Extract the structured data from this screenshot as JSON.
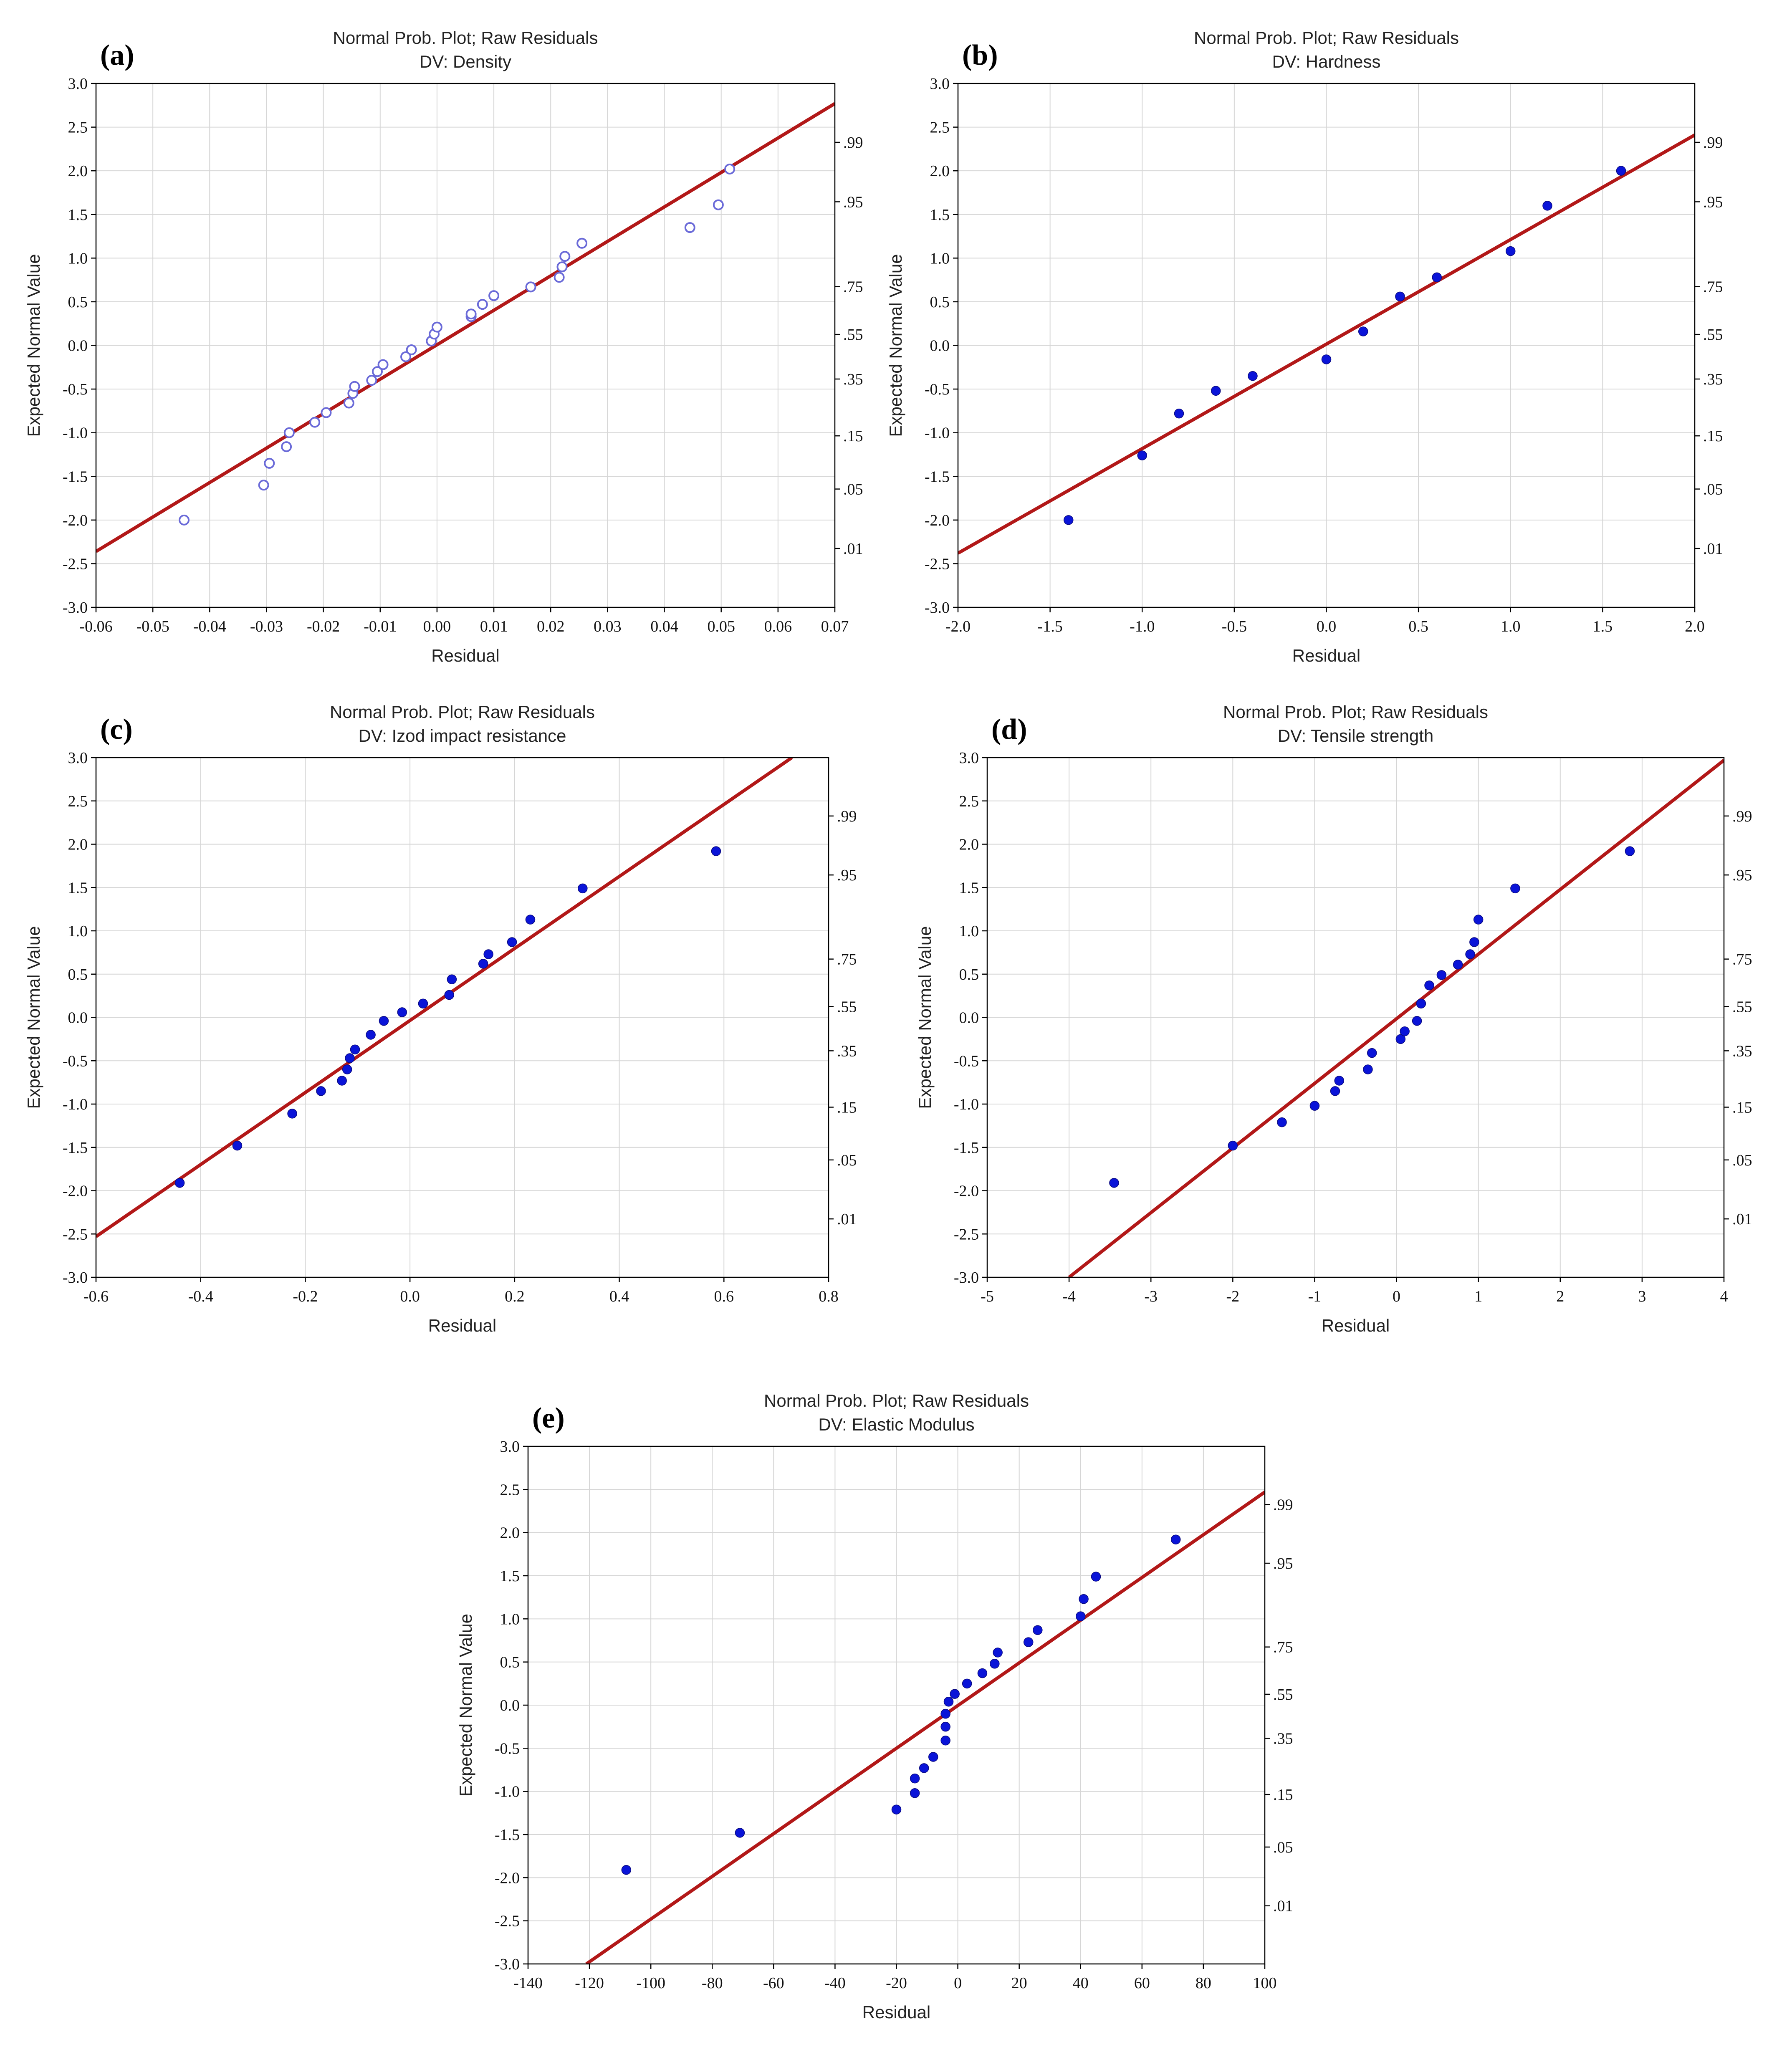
{
  "figure": {
    "title_line1": "Normal Prob. Plot; Raw Residuals"
  },
  "colors": {
    "fit_line": "#b21818",
    "marker": "#0a14d8",
    "marker_open": "#6a6ad8",
    "grid": "#d6d6d6"
  },
  "chart_data": [
    {
      "type": "scatter",
      "panel_label": "(a)",
      "title": "Normal Prob. Plot; Raw Residuals",
      "subtitle": "DV: Density",
      "xlabel": "Residual",
      "ylabel": "Expected Normal Value",
      "xlim": [
        -0.06,
        0.07
      ],
      "ylim": [
        -3.0,
        3.0
      ],
      "xticks": [
        -0.06,
        -0.05,
        -0.04,
        -0.03,
        -0.02,
        -0.01,
        0.0,
        0.01,
        0.02,
        0.03,
        0.04,
        0.05,
        0.06,
        0.07
      ],
      "xtick_labels": [
        "-0.06",
        "-0.05",
        "-0.04",
        "-0.03",
        "-0.02",
        "-0.01",
        "0.00",
        "0.01",
        "0.02",
        "0.03",
        "0.04",
        "0.05",
        "0.06",
        "0.07"
      ],
      "yticks": [
        -3.0,
        -2.5,
        -2.0,
        -1.5,
        -1.0,
        -0.5,
        0.0,
        0.5,
        1.0,
        1.5,
        2.0,
        2.5,
        3.0
      ],
      "ytick_labels": [
        "-3.0",
        "-2.5",
        "-2.0",
        "-1.5",
        "-1.0",
        "-0.5",
        "0.0",
        "0.5",
        "1.0",
        "1.5",
        "2.0",
        "2.5",
        "3.0"
      ],
      "prob_ticks": [
        {
          "y": 2.326,
          "label": ".99"
        },
        {
          "y": 1.645,
          "label": ".95"
        },
        {
          "y": 0.674,
          "label": ".75"
        },
        {
          "y": 0.126,
          "label": ".55"
        },
        {
          "y": -0.385,
          "label": ".35"
        },
        {
          "y": -1.036,
          "label": ".15"
        },
        {
          "y": -1.645,
          "label": ".05"
        },
        {
          "y": -2.326,
          "label": ".01"
        }
      ],
      "marker_style": "open",
      "fit_line": [
        [
          -0.06,
          -2.36
        ],
        [
          0.07,
          2.77
        ]
      ],
      "points": [
        [
          -0.0445,
          -2.0
        ],
        [
          -0.0305,
          -1.6
        ],
        [
          -0.0295,
          -1.35
        ],
        [
          -0.0265,
          -1.16
        ],
        [
          -0.026,
          -1.0
        ],
        [
          -0.0215,
          -0.88
        ],
        [
          -0.0195,
          -0.77
        ],
        [
          -0.0155,
          -0.66
        ],
        [
          -0.0148,
          -0.55
        ],
        [
          -0.0145,
          -0.47
        ],
        [
          -0.0115,
          -0.4
        ],
        [
          -0.0105,
          -0.3
        ],
        [
          -0.0095,
          -0.22
        ],
        [
          -0.0055,
          -0.13
        ],
        [
          -0.0045,
          -0.05
        ],
        [
          -0.001,
          0.05
        ],
        [
          -0.0005,
          0.13
        ],
        [
          0.0,
          0.21
        ],
        [
          0.006,
          0.33
        ],
        [
          0.006,
          0.36
        ],
        [
          0.008,
          0.47
        ],
        [
          0.01,
          0.57
        ],
        [
          0.0165,
          0.67
        ],
        [
          0.0215,
          0.78
        ],
        [
          0.022,
          0.9
        ],
        [
          0.0225,
          1.02
        ],
        [
          0.0255,
          1.17
        ],
        [
          0.0445,
          1.35
        ],
        [
          0.0495,
          1.61
        ],
        [
          0.0515,
          2.02
        ]
      ]
    },
    {
      "type": "scatter",
      "panel_label": "(b)",
      "title": "Normal Prob. Plot; Raw Residuals",
      "subtitle": "DV: Hardness",
      "xlabel": "Residual",
      "ylabel": "Expected Normal Value",
      "xlim": [
        -2.0,
        2.0
      ],
      "ylim": [
        -3.0,
        3.0
      ],
      "xticks": [
        -2.0,
        -1.5,
        -1.0,
        -0.5,
        0.0,
        0.5,
        1.0,
        1.5,
        2.0
      ],
      "xtick_labels": [
        "-2.0",
        "-1.5",
        "-1.0",
        "-0.5",
        "0.0",
        "0.5",
        "1.0",
        "1.5",
        "2.0"
      ],
      "yticks": [
        -3.0,
        -2.5,
        -2.0,
        -1.5,
        -1.0,
        -0.5,
        0.0,
        0.5,
        1.0,
        1.5,
        2.0,
        2.5,
        3.0
      ],
      "ytick_labels": [
        "-3.0",
        "-2.5",
        "-2.0",
        "-1.5",
        "-1.0",
        "-0.5",
        "0.0",
        "0.5",
        "1.0",
        "1.5",
        "2.0",
        "2.5",
        "3.0"
      ],
      "prob_ticks": [
        {
          "y": 2.326,
          "label": ".99"
        },
        {
          "y": 1.645,
          "label": ".95"
        },
        {
          "y": 0.674,
          "label": ".75"
        },
        {
          "y": 0.126,
          "label": ".55"
        },
        {
          "y": -0.385,
          "label": ".35"
        },
        {
          "y": -1.036,
          "label": ".15"
        },
        {
          "y": -1.645,
          "label": ".05"
        },
        {
          "y": -2.326,
          "label": ".01"
        }
      ],
      "marker_style": "filled",
      "fit_line": [
        [
          -2.0,
          -2.38
        ],
        [
          2.0,
          2.41
        ]
      ],
      "points": [
        [
          -1.4,
          -2.0
        ],
        [
          -1.0,
          -1.26
        ],
        [
          -0.8,
          -0.78
        ],
        [
          -0.6,
          -0.52
        ],
        [
          -0.4,
          -0.35
        ],
        [
          0.0,
          -0.16
        ],
        [
          0.2,
          0.16
        ],
        [
          0.4,
          0.56
        ],
        [
          0.6,
          0.78
        ],
        [
          1.0,
          1.08
        ],
        [
          1.2,
          1.6
        ],
        [
          1.6,
          2.0
        ]
      ]
    },
    {
      "type": "scatter",
      "panel_label": "(c)",
      "title": "Normal Prob. Plot; Raw Residuals",
      "subtitle": "DV: Izod impact resistance",
      "xlabel": "Residual",
      "ylabel": "Expected Normal Value",
      "xlim": [
        -0.6,
        0.8
      ],
      "ylim": [
        -3.0,
        3.0
      ],
      "xticks": [
        -0.6,
        -0.4,
        -0.2,
        0.0,
        0.2,
        0.4,
        0.6,
        0.8
      ],
      "xtick_labels": [
        "-0.6",
        "-0.4",
        "-0.2",
        "0.0",
        "0.2",
        "0.4",
        "0.6",
        "0.8"
      ],
      "yticks": [
        -3.0,
        -2.5,
        -2.0,
        -1.5,
        -1.0,
        -0.5,
        0.0,
        0.5,
        1.0,
        1.5,
        2.0,
        2.5,
        3.0
      ],
      "ytick_labels": [
        "-3.0",
        "-2.5",
        "-2.0",
        "-1.5",
        "-1.0",
        "-0.5",
        "0.0",
        "0.5",
        "1.0",
        "1.5",
        "2.0",
        "2.5",
        "3.0"
      ],
      "prob_ticks": [
        {
          "y": 2.326,
          "label": ".99"
        },
        {
          "y": 1.645,
          "label": ".95"
        },
        {
          "y": 0.674,
          "label": ".75"
        },
        {
          "y": 0.126,
          "label": ".55"
        },
        {
          "y": -0.385,
          "label": ".35"
        },
        {
          "y": -1.036,
          "label": ".15"
        },
        {
          "y": -1.645,
          "label": ".05"
        },
        {
          "y": -2.326,
          "label": ".01"
        }
      ],
      "marker_style": "filled",
      "fit_line": [
        [
          -0.6,
          -2.53
        ],
        [
          0.73,
          3.0
        ]
      ],
      "points": [
        [
          -0.44,
          -1.91
        ],
        [
          -0.33,
          -1.48
        ],
        [
          -0.225,
          -1.11
        ],
        [
          -0.17,
          -0.85
        ],
        [
          -0.13,
          -0.73
        ],
        [
          -0.12,
          -0.6
        ],
        [
          -0.115,
          -0.47
        ],
        [
          -0.105,
          -0.37
        ],
        [
          -0.075,
          -0.2
        ],
        [
          -0.05,
          -0.04
        ],
        [
          -0.015,
          0.06
        ],
        [
          0.025,
          0.16
        ],
        [
          0.075,
          0.26
        ],
        [
          0.08,
          0.44
        ],
        [
          0.14,
          0.62
        ],
        [
          0.15,
          0.73
        ],
        [
          0.195,
          0.87
        ],
        [
          0.23,
          1.13
        ],
        [
          0.33,
          1.49
        ],
        [
          0.585,
          1.92
        ]
      ]
    },
    {
      "type": "scatter",
      "panel_label": "(d)",
      "title": "Normal Prob. Plot; Raw Residuals",
      "subtitle": "DV: Tensile strength",
      "xlabel": "Residual",
      "ylabel": "Expected Normal Value",
      "xlim": [
        -5,
        4
      ],
      "ylim": [
        -3.0,
        3.0
      ],
      "xticks": [
        -5,
        -4,
        -3,
        -2,
        -1,
        0,
        1,
        2,
        3,
        4
      ],
      "xtick_labels": [
        "-5",
        "-4",
        "-3",
        "-2",
        "-1",
        "0",
        "1",
        "2",
        "3",
        "4"
      ],
      "yticks": [
        -3.0,
        -2.5,
        -2.0,
        -1.5,
        -1.0,
        -0.5,
        0.0,
        0.5,
        1.0,
        1.5,
        2.0,
        2.5,
        3.0
      ],
      "ytick_labels": [
        "-3.0",
        "-2.5",
        "-2.0",
        "-1.5",
        "-1.0",
        "-0.5",
        "0.0",
        "0.5",
        "1.0",
        "1.5",
        "2.0",
        "2.5",
        "3.0"
      ],
      "prob_ticks": [
        {
          "y": 2.326,
          "label": ".99"
        },
        {
          "y": 1.645,
          "label": ".95"
        },
        {
          "y": 0.674,
          "label": ".75"
        },
        {
          "y": 0.126,
          "label": ".55"
        },
        {
          "y": -0.385,
          "label": ".35"
        },
        {
          "y": -1.036,
          "label": ".15"
        },
        {
          "y": -1.645,
          "label": ".05"
        },
        {
          "y": -2.326,
          "label": ".01"
        }
      ],
      "marker_style": "filled",
      "fit_line": [
        [
          -4.0,
          -3.0
        ],
        [
          4.0,
          2.97
        ]
      ],
      "points": [
        [
          -3.45,
          -1.91
        ],
        [
          -2.0,
          -1.48
        ],
        [
          -1.4,
          -1.21
        ],
        [
          -1.0,
          -1.02
        ],
        [
          -0.75,
          -0.85
        ],
        [
          -0.7,
          -0.73
        ],
        [
          -0.35,
          -0.6
        ],
        [
          -0.3,
          -0.41
        ],
        [
          0.05,
          -0.25
        ],
        [
          0.1,
          -0.16
        ],
        [
          0.25,
          -0.04
        ],
        [
          0.3,
          0.16
        ],
        [
          0.4,
          0.37
        ],
        [
          0.55,
          0.49
        ],
        [
          0.75,
          0.61
        ],
        [
          0.9,
          0.73
        ],
        [
          0.95,
          0.87
        ],
        [
          1.0,
          1.13
        ],
        [
          1.45,
          1.49
        ],
        [
          2.85,
          1.92
        ]
      ]
    },
    {
      "type": "scatter",
      "panel_label": "(e)",
      "title": "Normal Prob. Plot; Raw Residuals",
      "subtitle": "DV: Elastic Modulus",
      "xlabel": "Residual",
      "ylabel": "Expected Normal Value",
      "xlim": [
        -140,
        100
      ],
      "ylim": [
        -3.0,
        3.0
      ],
      "xticks": [
        -140,
        -120,
        -100,
        -80,
        -60,
        -40,
        -20,
        0,
        20,
        40,
        60,
        80,
        100
      ],
      "xtick_labels": [
        "-140",
        "-120",
        "-100",
        "-80",
        "-60",
        "-40",
        "-20",
        "0",
        "20",
        "40",
        "60",
        "80",
        "100"
      ],
      "yticks": [
        -3.0,
        -2.5,
        -2.0,
        -1.5,
        -1.0,
        -0.5,
        0.0,
        0.5,
        1.0,
        1.5,
        2.0,
        2.5,
        3.0
      ],
      "ytick_labels": [
        "-3.0",
        "-2.5",
        "-2.0",
        "-1.5",
        "-1.0",
        "-0.5",
        "0.0",
        "0.5",
        "1.0",
        "1.5",
        "2.0",
        "2.5",
        "3.0"
      ],
      "prob_ticks": [
        {
          "y": 2.326,
          "label": ".99"
        },
        {
          "y": 1.645,
          "label": ".95"
        },
        {
          "y": 0.674,
          "label": ".75"
        },
        {
          "y": 0.126,
          "label": ".55"
        },
        {
          "y": -0.385,
          "label": ".35"
        },
        {
          "y": -1.036,
          "label": ".15"
        },
        {
          "y": -1.645,
          "label": ".05"
        },
        {
          "y": -2.326,
          "label": ".01"
        }
      ],
      "marker_style": "filled",
      "fit_line": [
        [
          -121,
          -3.0
        ],
        [
          100,
          2.47
        ]
      ],
      "points": [
        [
          -108,
          -1.91
        ],
        [
          -71,
          -1.48
        ],
        [
          -20,
          -1.21
        ],
        [
          -14,
          -1.02
        ],
        [
          -14,
          -0.85
        ],
        [
          -11,
          -0.73
        ],
        [
          -8,
          -0.6
        ],
        [
          -4,
          -0.41
        ],
        [
          -4,
          -0.25
        ],
        [
          -4,
          -0.1
        ],
        [
          -3,
          0.04
        ],
        [
          -1,
          0.13
        ],
        [
          3,
          0.25
        ],
        [
          8,
          0.37
        ],
        [
          12,
          0.48
        ],
        [
          13,
          0.61
        ],
        [
          23,
          0.73
        ],
        [
          26,
          0.87
        ],
        [
          40,
          1.03
        ],
        [
          41,
          1.23
        ],
        [
          45,
          1.49
        ],
        [
          71,
          1.92
        ]
      ]
    }
  ]
}
